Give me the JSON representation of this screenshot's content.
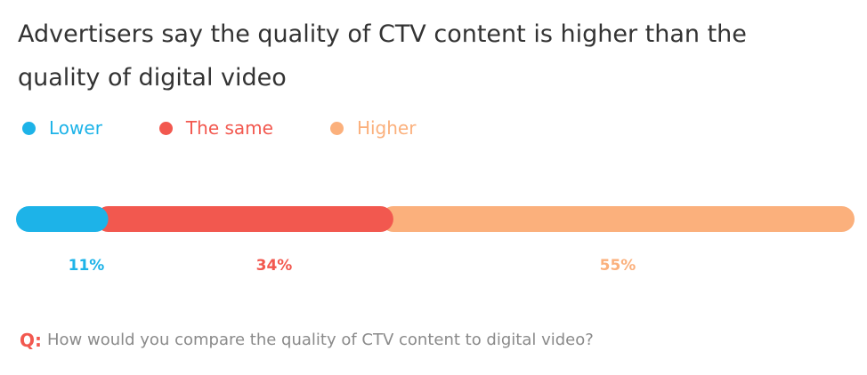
{
  "chart_data": {
    "type": "bar",
    "orientation": "horizontal-stacked",
    "title": "Advertisers say the quality of CTV content is higher than the quality of digital video",
    "series": [
      {
        "name": "Lower",
        "value": 11,
        "label": "11%",
        "color": "#1db3e8"
      },
      {
        "name": "The same",
        "value": 34,
        "label": "34%",
        "color": "#f2584f"
      },
      {
        "name": "Higher",
        "value": 55,
        "label": "55%",
        "color": "#fbb07c"
      }
    ],
    "xlim": [
      0,
      100
    ],
    "legend_position": "top-left",
    "grid": false
  },
  "question": {
    "icon": "Q:",
    "text": "How would you compare the quality of CTV content to digital video?"
  }
}
